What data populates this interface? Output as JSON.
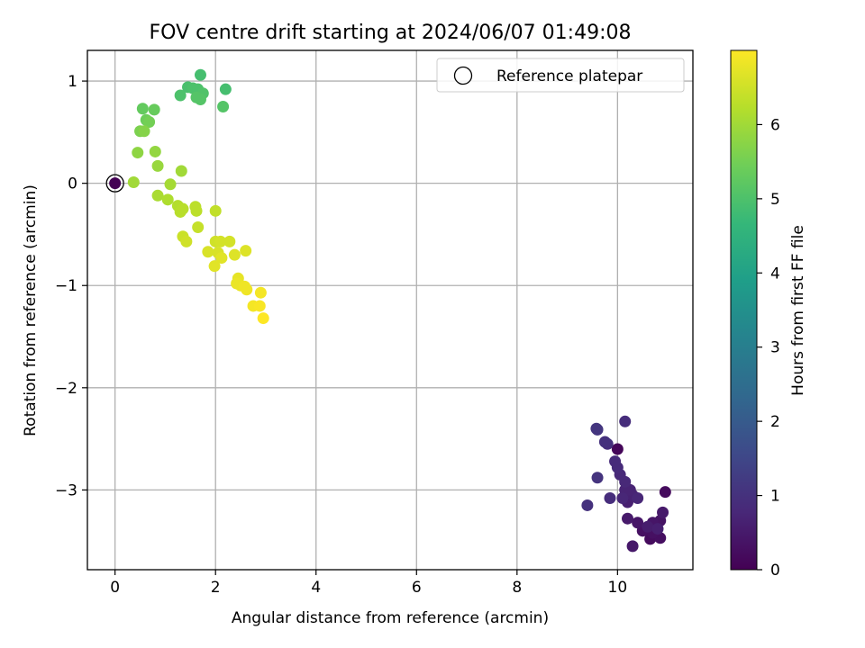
{
  "chart_data": {
    "type": "scatter",
    "title": "FOV centre drift starting at 2024/06/07 01:49:08",
    "xlabel": "Angular distance from reference (arcmin)",
    "ylabel": "Rotation from reference (arcmin)",
    "xlim": [
      -0.55,
      11.5
    ],
    "ylim": [
      -3.78,
      1.3
    ],
    "xticks": [
      0,
      2,
      4,
      6,
      8,
      10
    ],
    "yticks": [
      -3,
      -2,
      -1,
      0,
      1
    ],
    "grid": true,
    "legend": {
      "placement": "top-right",
      "entries": [
        "Reference platepar"
      ]
    },
    "reference_point": {
      "x": 0,
      "y": 0,
      "hours": 0
    },
    "colorbar": {
      "label": "Hours from first FF file",
      "range": [
        0,
        7
      ],
      "ticks": [
        0,
        1,
        2,
        3,
        4,
        5,
        6
      ],
      "colormap": "viridis",
      "stops": [
        "#440154",
        "#482878",
        "#3e4989",
        "#31688e",
        "#26828e",
        "#1f9e89",
        "#35b779",
        "#6ece58",
        "#b5de2b",
        "#fde725"
      ]
    },
    "points": [
      {
        "x": 10.0,
        "y": -2.6,
        "h": 0.1
      },
      {
        "x": 10.95,
        "y": -3.02,
        "h": 0.2
      },
      {
        "x": 10.65,
        "y": -3.48,
        "h": 0.2
      },
      {
        "x": 10.85,
        "y": -3.47,
        "h": 0.25
      },
      {
        "x": 10.7,
        "y": -3.42,
        "h": 0.3
      },
      {
        "x": 10.5,
        "y": -3.4,
        "h": 0.3
      },
      {
        "x": 10.85,
        "y": -3.3,
        "h": 0.35
      },
      {
        "x": 10.7,
        "y": -3.32,
        "h": 0.4
      },
      {
        "x": 10.4,
        "y": -3.32,
        "h": 0.4
      },
      {
        "x": 10.3,
        "y": -3.55,
        "h": 0.45
      },
      {
        "x": 10.2,
        "y": -3.28,
        "h": 0.5
      },
      {
        "x": 10.9,
        "y": -3.22,
        "h": 0.5
      },
      {
        "x": 10.6,
        "y": -3.36,
        "h": 0.55
      },
      {
        "x": 10.8,
        "y": -3.38,
        "h": 0.6
      },
      {
        "x": 10.2,
        "y": -3.12,
        "h": 0.6
      },
      {
        "x": 10.3,
        "y": -3.05,
        "h": 0.65
      },
      {
        "x": 10.15,
        "y": -3.0,
        "h": 0.7
      },
      {
        "x": 10.25,
        "y": -3.0,
        "h": 0.7
      },
      {
        "x": 10.4,
        "y": -3.08,
        "h": 0.75
      },
      {
        "x": 10.1,
        "y": -3.08,
        "h": 0.75
      },
      {
        "x": 10.15,
        "y": -2.92,
        "h": 0.8
      },
      {
        "x": 10.05,
        "y": -2.85,
        "h": 0.8
      },
      {
        "x": 10.0,
        "y": -2.78,
        "h": 0.85
      },
      {
        "x": 9.95,
        "y": -2.72,
        "h": 0.85
      },
      {
        "x": 9.85,
        "y": -3.08,
        "h": 0.9
      },
      {
        "x": 10.15,
        "y": -2.33,
        "h": 0.9
      },
      {
        "x": 9.8,
        "y": -2.55,
        "h": 0.95
      },
      {
        "x": 9.75,
        "y": -2.53,
        "h": 1.0
      },
      {
        "x": 9.4,
        "y": -3.15,
        "h": 1.0
      },
      {
        "x": 9.6,
        "y": -2.88,
        "h": 1.05
      },
      {
        "x": 9.58,
        "y": -2.4,
        "h": 1.1
      },
      {
        "x": 9.6,
        "y": -2.41,
        "h": 1.1
      },
      {
        "x": 1.7,
        "y": 1.06,
        "h": 4.9
      },
      {
        "x": 2.2,
        "y": 0.92,
        "h": 4.9
      },
      {
        "x": 1.45,
        "y": 0.94,
        "h": 4.95
      },
      {
        "x": 1.55,
        "y": 0.93,
        "h": 5.0
      },
      {
        "x": 1.65,
        "y": 0.92,
        "h": 5.0
      },
      {
        "x": 1.3,
        "y": 0.86,
        "h": 5.0
      },
      {
        "x": 1.75,
        "y": 0.88,
        "h": 5.05
      },
      {
        "x": 1.62,
        "y": 0.84,
        "h": 5.1
      },
      {
        "x": 1.7,
        "y": 0.82,
        "h": 5.1
      },
      {
        "x": 2.15,
        "y": 0.75,
        "h": 5.1
      },
      {
        "x": 0.55,
        "y": 0.73,
        "h": 5.3
      },
      {
        "x": 0.78,
        "y": 0.72,
        "h": 5.35
      },
      {
        "x": 0.62,
        "y": 0.62,
        "h": 5.4
      },
      {
        "x": 0.68,
        "y": 0.6,
        "h": 5.5
      },
      {
        "x": 0.5,
        "y": 0.51,
        "h": 5.6
      },
      {
        "x": 0.58,
        "y": 0.51,
        "h": 5.7
      },
      {
        "x": 0.45,
        "y": 0.3,
        "h": 5.8
      },
      {
        "x": 0.8,
        "y": 0.31,
        "h": 5.85
      },
      {
        "x": 0.85,
        "y": 0.17,
        "h": 5.9
      },
      {
        "x": 1.32,
        "y": 0.12,
        "h": 6.0
      },
      {
        "x": 0.37,
        "y": 0.01,
        "h": 6.0
      },
      {
        "x": 1.1,
        "y": -0.01,
        "h": 6.05
      },
      {
        "x": 0.85,
        "y": -0.12,
        "h": 6.1
      },
      {
        "x": 1.05,
        "y": -0.16,
        "h": 6.15
      },
      {
        "x": 1.25,
        "y": -0.22,
        "h": 6.2
      },
      {
        "x": 1.35,
        "y": -0.25,
        "h": 6.25
      },
      {
        "x": 1.3,
        "y": -0.28,
        "h": 6.25
      },
      {
        "x": 1.6,
        "y": -0.23,
        "h": 6.3
      },
      {
        "x": 1.62,
        "y": -0.27,
        "h": 6.3
      },
      {
        "x": 2.0,
        "y": -0.27,
        "h": 6.35
      },
      {
        "x": 1.65,
        "y": -0.43,
        "h": 6.4
      },
      {
        "x": 1.35,
        "y": -0.52,
        "h": 6.45
      },
      {
        "x": 1.42,
        "y": -0.57,
        "h": 6.5
      },
      {
        "x": 2.0,
        "y": -0.57,
        "h": 6.5
      },
      {
        "x": 2.1,
        "y": -0.57,
        "h": 6.55
      },
      {
        "x": 2.28,
        "y": -0.57,
        "h": 6.55
      },
      {
        "x": 1.85,
        "y": -0.67,
        "h": 6.6
      },
      {
        "x": 2.05,
        "y": -0.68,
        "h": 6.6
      },
      {
        "x": 2.6,
        "y": -0.66,
        "h": 6.65
      },
      {
        "x": 2.38,
        "y": -0.7,
        "h": 6.65
      },
      {
        "x": 2.12,
        "y": -0.73,
        "h": 6.7
      },
      {
        "x": 1.98,
        "y": -0.81,
        "h": 6.7
      },
      {
        "x": 2.45,
        "y": -0.93,
        "h": 6.75
      },
      {
        "x": 2.42,
        "y": -0.98,
        "h": 6.8
      },
      {
        "x": 2.5,
        "y": -1.0,
        "h": 6.8
      },
      {
        "x": 2.58,
        "y": -1.01,
        "h": 6.85
      },
      {
        "x": 2.62,
        "y": -1.04,
        "h": 6.85
      },
      {
        "x": 2.9,
        "y": -1.07,
        "h": 6.9
      },
      {
        "x": 2.75,
        "y": -1.2,
        "h": 6.9
      },
      {
        "x": 2.88,
        "y": -1.2,
        "h": 6.95
      },
      {
        "x": 2.95,
        "y": -1.32,
        "h": 7.0
      },
      {
        "x": 0.0,
        "y": 0.0,
        "h": 0.0
      }
    ]
  }
}
